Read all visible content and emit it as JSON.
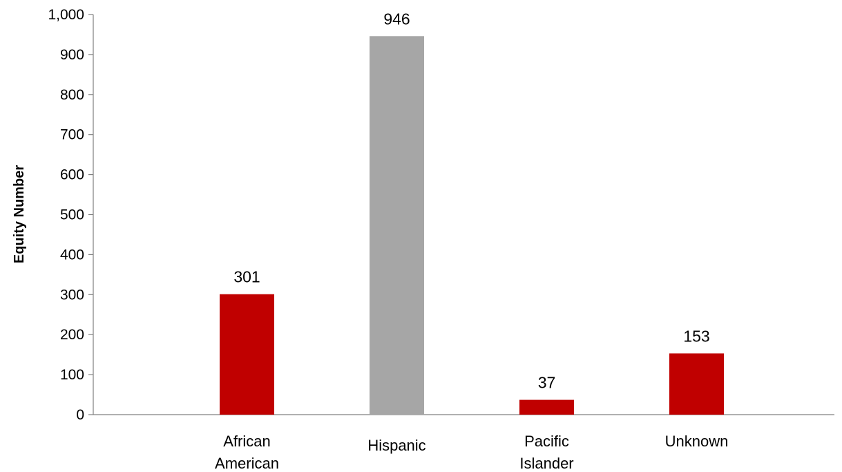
{
  "chart_data": {
    "type": "bar",
    "categories": [
      [
        "African",
        "American"
      ],
      [
        "Hispanic"
      ],
      [
        "Pacific",
        "Islander"
      ],
      [
        "Unknown"
      ]
    ],
    "values": [
      301,
      946,
      37,
      153
    ],
    "data_labels": [
      "301",
      "946",
      "37",
      "153"
    ],
    "bar_colors": [
      "#c00000",
      "#a6a6a6",
      "#c00000",
      "#c00000"
    ],
    "title": "",
    "xlabel": "",
    "ylabel": "Equity Number",
    "ylim": [
      0,
      1000
    ],
    "yticks": [
      0,
      100,
      200,
      300,
      400,
      500,
      600,
      700,
      800,
      900,
      1000
    ],
    "ytick_labels": [
      "0",
      "100",
      "200",
      "300",
      "400",
      "500",
      "600",
      "700",
      "800",
      "900",
      "1,000"
    ],
    "grid": false,
    "legend": "none"
  }
}
